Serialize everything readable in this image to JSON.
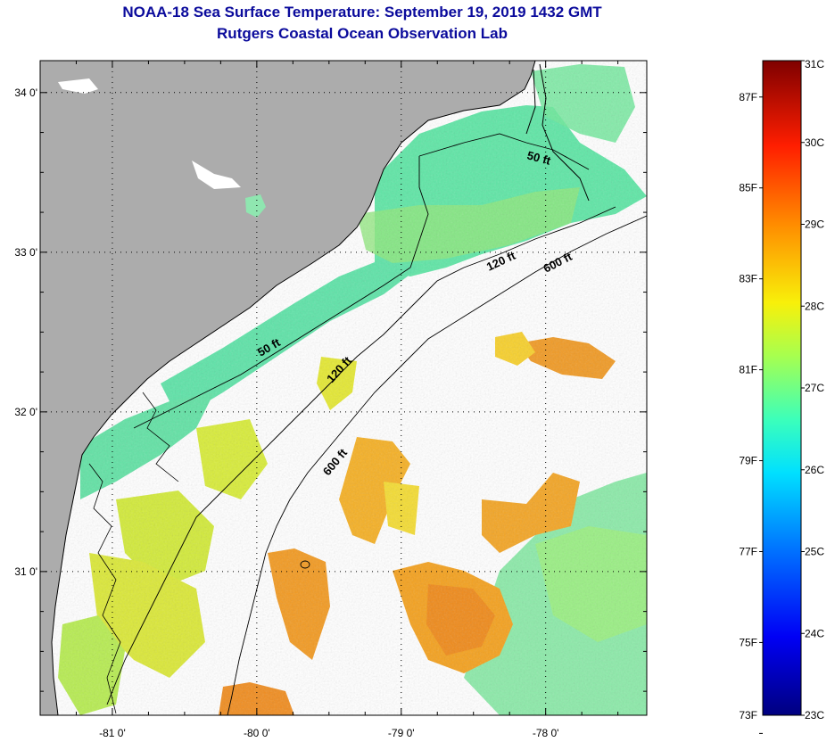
{
  "title": {
    "line1": "NOAA-18 Sea Surface Temperature:  September 19, 2019 1432 GMT",
    "line2": "Rutgers Coastal Ocean Observation Lab"
  },
  "map": {
    "lon_range": [
      -81.5,
      -77.3
    ],
    "lat_range": [
      30.1,
      34.2
    ],
    "lon_ticks": [
      {
        "value": -81,
        "label": "-81 0'"
      },
      {
        "value": -80,
        "label": "-80 0'"
      },
      {
        "value": -79,
        "label": "-79 0'"
      },
      {
        "value": -78,
        "label": "-78 0'"
      }
    ],
    "lat_ticks": [
      {
        "value": 34,
        "label": "34 0'"
      },
      {
        "value": 33,
        "label": "33 0'"
      },
      {
        "value": 32,
        "label": "32 0'"
      },
      {
        "value": 31,
        "label": "31 0'"
      }
    ],
    "contour_labels": [
      "50 ft",
      "50 ft",
      "120 ft",
      "120 ft",
      "600 ft",
      "600 ft"
    ],
    "colors": {
      "land": "#acacac",
      "nodata": "#ffffff",
      "coast_line": "#000000"
    }
  },
  "colorbar": {
    "fahrenheit_labels": [
      "87F",
      "85F",
      "83F",
      "81F",
      "79F",
      "77F",
      "75F",
      "73F"
    ],
    "celsius_labels": [
      "31C",
      "30C",
      "29C",
      "28C",
      "27C",
      "26C",
      "25C",
      "24C",
      "23C"
    ],
    "range_c": [
      23,
      31
    ]
  }
}
